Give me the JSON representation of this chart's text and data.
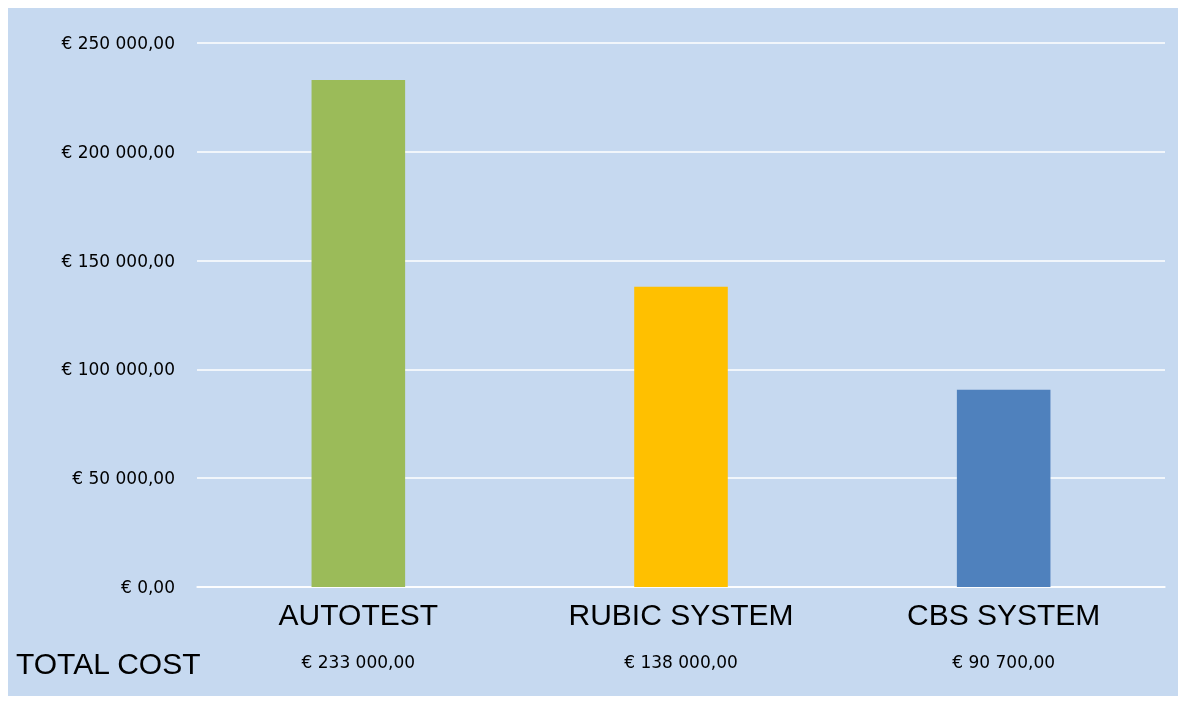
{
  "chart_data": {
    "type": "bar",
    "categories": [
      "AUTOTEST",
      "RUBIC SYSTEM",
      "CBS SYSTEM"
    ],
    "values": [
      233000,
      138000,
      90700
    ],
    "colors": [
      "#9bbb59",
      "#ffc000",
      "#4f81bd"
    ],
    "value_labels": [
      "€ 233 000,00",
      "€ 138 000,00",
      "€ 90 700,00"
    ],
    "annotations": [
      "TOTAL COST"
    ],
    "ylim": [
      0,
      250000
    ],
    "yticks": [
      {
        "value": 0,
        "label": "€ 0,00"
      },
      {
        "value": 50000,
        "label": "€ 50 000,00"
      },
      {
        "value": 100000,
        "label": "€ 100 000,00"
      },
      {
        "value": 150000,
        "label": "€ 150 000,00"
      },
      {
        "value": 200000,
        "label": "€ 200 000,00"
      },
      {
        "value": 250000,
        "label": "€ 250 000,00"
      }
    ],
    "grid": "y"
  }
}
